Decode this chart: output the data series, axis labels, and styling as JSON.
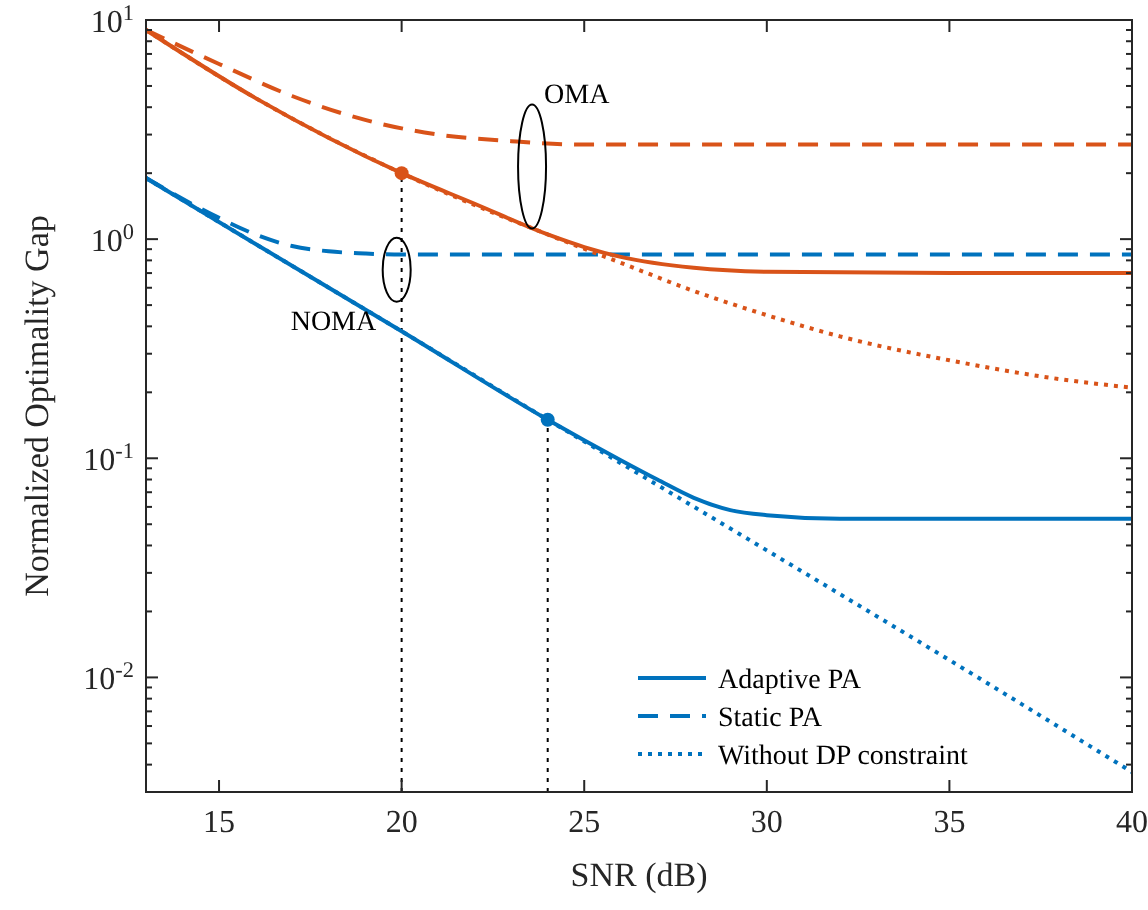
{
  "chart_data": {
    "type": "line",
    "xlabel": "SNR (dB)",
    "ylabel": "Normalized Optimality Gap",
    "log": "y",
    "grid": false,
    "legend": "bottom right",
    "marker": "none",
    "xlim": [
      13,
      40
    ],
    "xticks": [
      15,
      20,
      25,
      30,
      35,
      40
    ],
    "ylim": [
      0.003,
      10
    ],
    "yticks": [
      {
        "value": 0.01,
        "label": "10$^{-2}$"
      },
      {
        "value": 0.1,
        "label": "10$^{-1}$"
      },
      {
        "value": 1,
        "label": "10$^{0}$"
      },
      {
        "value": 10,
        "label": "10$^{1}$"
      }
    ],
    "annotations": [
      "OMA",
      "NOMA"
    ],
    "series": [
      {
        "name": "Adaptive PA",
        "color": "#0072bd",
        "line_style": "solid",
        "x": [
          13,
          16,
          20,
          24,
          26,
          27,
          28,
          29,
          30,
          32,
          40
        ],
        "values": [
          1.9,
          0.95,
          0.38,
          0.15,
          0.098,
          0.08,
          0.066,
          0.058,
          0.055,
          0.053,
          0.053
        ]
      },
      {
        "name": "Static PA",
        "color": "#0072bd",
        "line_style": "dashed",
        "x": [
          13,
          15,
          16,
          17,
          18,
          19,
          20,
          40
        ],
        "values": [
          1.9,
          1.25,
          1.05,
          0.93,
          0.88,
          0.86,
          0.85,
          0.85
        ]
      },
      {
        "name": "Without DP constraint",
        "color": "#0072bd",
        "line_style": "dotted",
        "x": [
          13,
          16,
          20,
          24,
          26,
          30,
          35,
          40
        ],
        "values": [
          1.9,
          0.95,
          0.38,
          0.15,
          0.095,
          0.038,
          0.012,
          0.0037
        ]
      },
      {
        "color": "#d95319",
        "line_style": "solid",
        "x": [
          13,
          16,
          20,
          22,
          24,
          25,
          26,
          28,
          30,
          35,
          40
        ],
        "values": [
          9,
          4.4,
          2.0,
          1.45,
          1.05,
          0.92,
          0.83,
          0.74,
          0.71,
          0.7,
          0.7
        ]
      },
      {
        "color": "#d95319",
        "line_style": "dashed",
        "x": [
          13,
          15,
          17,
          19,
          21,
          23,
          25,
          40
        ],
        "values": [
          9,
          6.3,
          4.5,
          3.5,
          3.0,
          2.8,
          2.7,
          2.7
        ]
      },
      {
        "color": "#d95319",
        "line_style": "dotted",
        "x": [
          13,
          16,
          20,
          24,
          26,
          28,
          30,
          32,
          35,
          38,
          40
        ],
        "values": [
          9,
          4.4,
          2.0,
          1.05,
          0.78,
          0.58,
          0.45,
          0.36,
          0.28,
          0.23,
          0.21
        ]
      },
      {
        "type": "scatter",
        "marker": "circle",
        "color": "#d95319",
        "x": [
          20
        ],
        "values": [
          2.0
        ]
      },
      {
        "type": "scatter",
        "marker": "circle",
        "color": "#0072bd",
        "x": [
          24
        ],
        "values": [
          0.15
        ]
      }
    ],
    "ref_lines": [
      {
        "axis": "x",
        "value": 20,
        "color": "#000000",
        "line_style": "dotted"
      },
      {
        "axis": "x",
        "value": 24,
        "color": "#000000",
        "line_style": "dotted"
      }
    ]
  }
}
